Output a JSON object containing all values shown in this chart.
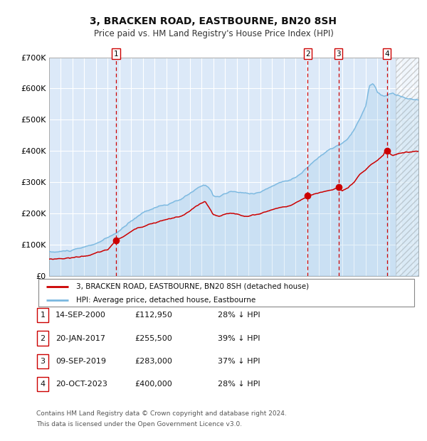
{
  "title": "3, BRACKEN ROAD, EASTBOURNE, BN20 8SH",
  "subtitle": "Price paid vs. HM Land Registry's House Price Index (HPI)",
  "ylim": [
    0,
    700000
  ],
  "yticks": [
    0,
    100000,
    200000,
    300000,
    400000,
    500000,
    600000,
    700000
  ],
  "ytick_labels": [
    "£0",
    "£100K",
    "£200K",
    "£300K",
    "£400K",
    "£500K",
    "£600K",
    "£700K"
  ],
  "xlim_start": 1995.0,
  "xlim_end": 2026.5,
  "background_color": "#dce9f8",
  "grid_color": "#ffffff",
  "hpi_line_color": "#7ab8e0",
  "sale_line_color": "#cc0000",
  "vline_color": "#cc0000",
  "hatch_start": 2024.58,
  "transactions": [
    {
      "num": 1,
      "date_str": "14-SEP-2000",
      "year": 2000.71,
      "price": 112950,
      "label": "1"
    },
    {
      "num": 2,
      "date_str": "20-JAN-2017",
      "year": 2017.05,
      "price": 255500,
      "label": "2"
    },
    {
      "num": 3,
      "date_str": "09-SEP-2019",
      "year": 2019.69,
      "price": 283000,
      "label": "3"
    },
    {
      "num": 4,
      "date_str": "20-OCT-2023",
      "year": 2023.8,
      "price": 400000,
      "label": "4"
    }
  ],
  "legend_line1": "3, BRACKEN ROAD, EASTBOURNE, BN20 8SH (detached house)",
  "legend_line2": "HPI: Average price, detached house, Eastbourne",
  "footnote1": "Contains HM Land Registry data © Crown copyright and database right 2024.",
  "footnote2": "This data is licensed under the Open Government Licence v3.0.",
  "table_rows": [
    [
      "1",
      "14-SEP-2000",
      "£112,950",
      "28% ↓ HPI"
    ],
    [
      "2",
      "20-JAN-2017",
      "£255,500",
      "39% ↓ HPI"
    ],
    [
      "3",
      "09-SEP-2019",
      "£283,000",
      "37% ↓ HPI"
    ],
    [
      "4",
      "20-OCT-2023",
      "£400,000",
      "28% ↓ HPI"
    ]
  ]
}
